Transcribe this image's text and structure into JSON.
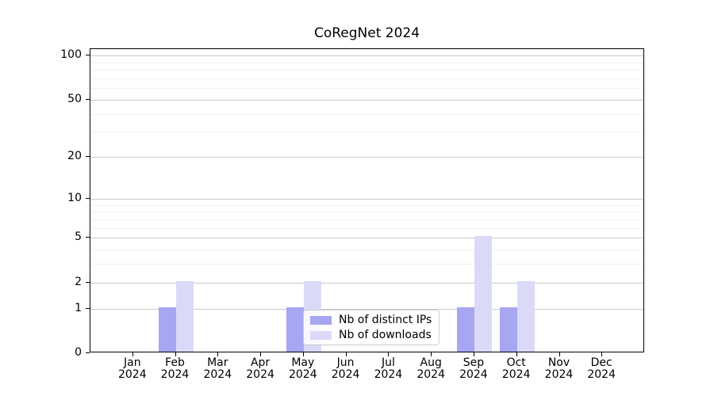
{
  "title": "CoRegNet 2024",
  "chart_data": {
    "type": "bar",
    "title": "CoRegNet 2024",
    "categories": [
      "Jan 2024",
      "Feb 2024",
      "Mar 2024",
      "Apr 2024",
      "May 2024",
      "Jun 2024",
      "Jul 2024",
      "Aug 2024",
      "Sep 2024",
      "Oct 2024",
      "Nov 2024",
      "Dec 2024"
    ],
    "series": [
      {
        "name": "Nb of distinct IPs",
        "color": "#a6a6f2",
        "values": [
          0,
          1,
          0,
          0,
          1,
          0,
          0,
          0,
          1,
          1,
          0,
          0
        ]
      },
      {
        "name": "Nb of downloads",
        "color": "#dadaf8",
        "values": [
          0,
          2,
          0,
          0,
          2,
          0,
          0,
          0,
          5,
          2,
          0,
          0
        ]
      }
    ],
    "xlabel": "",
    "ylabel": "",
    "yscale": "log10(1+x)",
    "ylim": [
      0,
      110.6
    ],
    "y_major_ticks": [
      0,
      1,
      2,
      5,
      10,
      20,
      50,
      100
    ],
    "y_minor_gridlines": [
      3,
      4,
      6,
      7,
      8,
      9,
      30,
      40,
      60,
      70,
      80,
      90
    ],
    "grid": true,
    "legend_position": "lower center"
  },
  "colors": {
    "grid_major": "#c9c9c9",
    "grid_minor": "#efefef",
    "axis": "#000000",
    "background": "#ffffff",
    "legend_border": "#cccccc"
  }
}
